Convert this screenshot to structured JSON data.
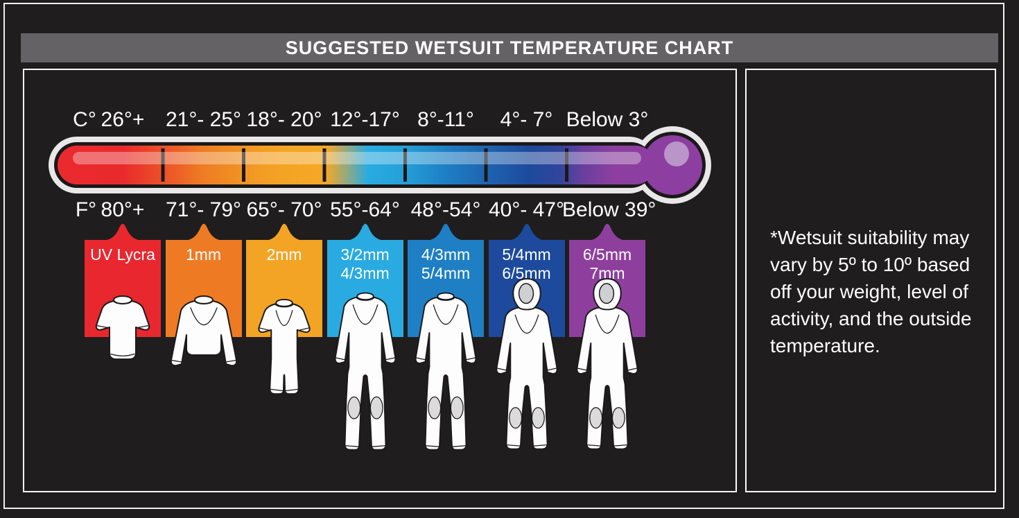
{
  "window": {
    "title": "SUGGESTED WETSUIT TEMPERATURE CHART"
  },
  "note_panel": {
    "text": "*Wetsuit suitability may vary by 5º to 10º based off your weight, level of activity, and the outside temperature.",
    "lines": [
      "*Wetsuit suitability may",
      "vary by 5º to 10º based",
      "off your weight, level of",
      "activity, and the outside",
      "temperature."
    ]
  },
  "chart_data": {
    "type": "table",
    "title": "SUGGESTED WETSUIT TEMPERATURE CHART",
    "row_headers": {
      "celsius": "C°",
      "fahrenheit": "F°"
    },
    "columns": [
      {
        "celsius": "26°+",
        "fahrenheit": "80°+",
        "wetsuit": [
          "UV Lycra"
        ],
        "figure": "short-sleeve-rashguard",
        "color": "#e8282e"
      },
      {
        "celsius": "21°- 25°",
        "fahrenheit": "71°- 79°",
        "wetsuit": [
          "1mm"
        ],
        "figure": "long-sleeve-rashguard",
        "color": "#ee7b24"
      },
      {
        "celsius": "18°- 20°",
        "fahrenheit": "65°- 70°",
        "wetsuit": [
          "2mm"
        ],
        "figure": "shorty-wetsuit",
        "color": "#f4a424"
      },
      {
        "celsius": "12°-17°",
        "fahrenheit": "55°-64°",
        "wetsuit": [
          "3/2mm",
          "4/3mm"
        ],
        "figure": "full-wetsuit",
        "color": "#29abe2"
      },
      {
        "celsius": "8°-11°",
        "fahrenheit": "48°-54°",
        "wetsuit": [
          "4/3mm",
          "5/4mm"
        ],
        "figure": "full-wetsuit",
        "color": "#1e7fc4"
      },
      {
        "celsius": "4°- 7°",
        "fahrenheit": "40°- 47°",
        "wetsuit": [
          "5/4mm",
          "6/5mm"
        ],
        "figure": "hooded-wetsuit",
        "color": "#1d4a9c"
      },
      {
        "celsius": "Below 3°",
        "fahrenheit": "Below 39°",
        "wetsuit": [
          "6/5mm",
          "7mm"
        ],
        "figure": "hooded-wetsuit",
        "color": "#8e3f9d"
      }
    ],
    "thermometer": {
      "bulb_color": "#8c3fa0",
      "gradient": [
        "#ea2a2e",
        "#ee7b24",
        "#f5a623",
        "#29abe2",
        "#1e7fc4",
        "#1d4a9c",
        "#8c3fa0"
      ]
    }
  }
}
